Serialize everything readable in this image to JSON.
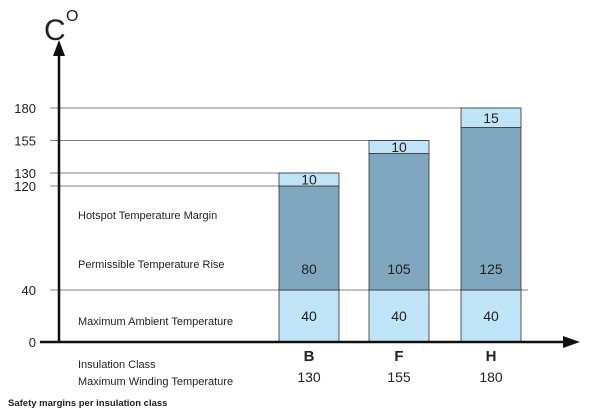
{
  "chart_data": {
    "type": "bar",
    "stacked": true,
    "unit_label": "C",
    "unit_superscript": "O",
    "y_ticks": [
      0,
      40,
      120,
      130,
      155,
      180
    ],
    "ylim": [
      0,
      180
    ],
    "categories": [
      "B",
      "F",
      "H"
    ],
    "max_winding_temperatures": [
      "130",
      "155",
      "180"
    ],
    "series": [
      {
        "name": "Maximum Ambient Temperature",
        "values": [
          40,
          40,
          40
        ],
        "color": "#bfe3f7"
      },
      {
        "name": "Permissible Temperature Rise",
        "values": [
          80,
          105,
          125
        ],
        "color": "#7fa8bf"
      },
      {
        "name": "Hotspot Temperature Margin",
        "values": [
          10,
          10,
          15
        ],
        "color": "#bfe3f7"
      }
    ],
    "band_labels": {
      "hotspot": "Hotspot Temperature Margin",
      "rise": "Permissible Temperature Rise",
      "ambient": "Maximum Ambient Temperature"
    },
    "row_labels": {
      "insulation_class": "Insulation Class",
      "max_winding_temp": "Maximum Winding Temperature"
    },
    "footnote": "Safety margins per insulation class"
  }
}
